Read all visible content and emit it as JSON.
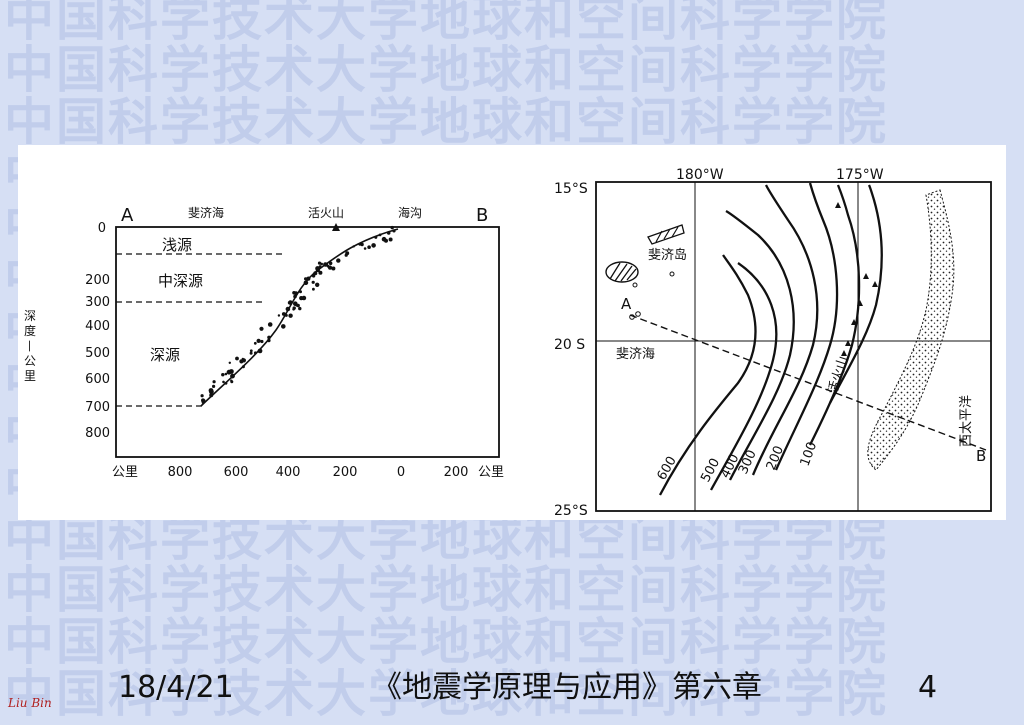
{
  "watermark": {
    "text": "中国科学技术大学地球和空间科学学院",
    "rows": 14
  },
  "cross_section": {
    "label_a": "A",
    "label_b": "B",
    "sea_label": "斐济海",
    "volcano_label": "活火山",
    "trench_label": "海沟",
    "zone_shallow": "浅源",
    "zone_intermediate": "中深源",
    "zone_deep": "深源",
    "depth_axis_title": "深度—公里",
    "depth_ticks": [
      "0",
      "200",
      "300",
      "400",
      "500",
      "600",
      "700",
      "800"
    ],
    "distance_ticks": [
      "公里",
      "800",
      "600",
      "400",
      "200",
      "0",
      "200",
      "公里"
    ]
  },
  "map": {
    "lat_15": "15°S",
    "lat_20": "20 S",
    "lat_25": "25°S",
    "lon_180": "180°W",
    "lon_175": "175°W",
    "fiji_island": "斐济岛",
    "fiji_sea": "斐济海",
    "volcano": "活火山",
    "pacific": "西太平洋",
    "label_a": "A",
    "label_b": "B",
    "contours": [
      "600",
      "500",
      "400",
      "300",
      "200",
      "100"
    ]
  },
  "footer": {
    "date": "18/4/21",
    "title": "《地震学原理与应用》第六章",
    "page": "4",
    "author": "Liu Bin"
  }
}
